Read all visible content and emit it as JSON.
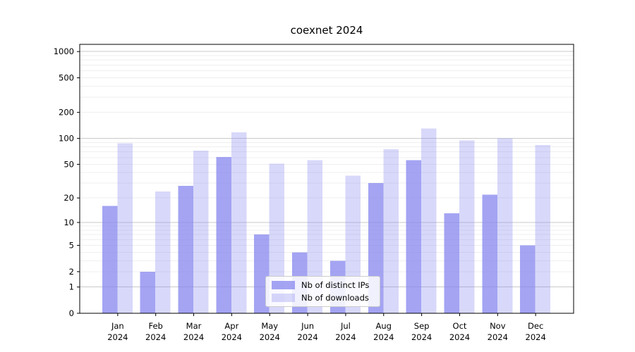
{
  "chart_data": {
    "type": "bar",
    "title": "coexnet 2024",
    "categories": [
      "Jan",
      "Feb",
      "Mar",
      "Apr",
      "May",
      "Jun",
      "Jul",
      "Aug",
      "Sep",
      "Oct",
      "Nov",
      "Dec"
    ],
    "category_year": "2024",
    "series": [
      {
        "name": "Nb of distinct IPs",
        "color": "#8686ef",
        "fill_opacity": 0.75,
        "values": [
          16,
          2,
          28,
          61,
          7,
          4,
          3,
          30,
          56,
          13,
          22,
          5
        ]
      },
      {
        "name": "Nb of downloads",
        "color": "#8686ef",
        "fill_opacity": 0.32,
        "values": [
          88,
          24,
          72,
          118,
          51,
          56,
          37,
          75,
          130,
          95,
          100,
          84
        ]
      }
    ],
    "yscale": "log1p",
    "yticks": [
      0,
      1,
      2,
      5,
      10,
      20,
      50,
      100,
      200,
      500,
      1000
    ],
    "ylim": [
      0,
      1210
    ],
    "grid_major": [
      1,
      10,
      100,
      1000
    ],
    "grid": "on",
    "legend_position": "lower-center",
    "colors": {
      "major_grid": "#c9c9c9",
      "minor_grid": "#efefef",
      "axis": "#000000"
    }
  }
}
